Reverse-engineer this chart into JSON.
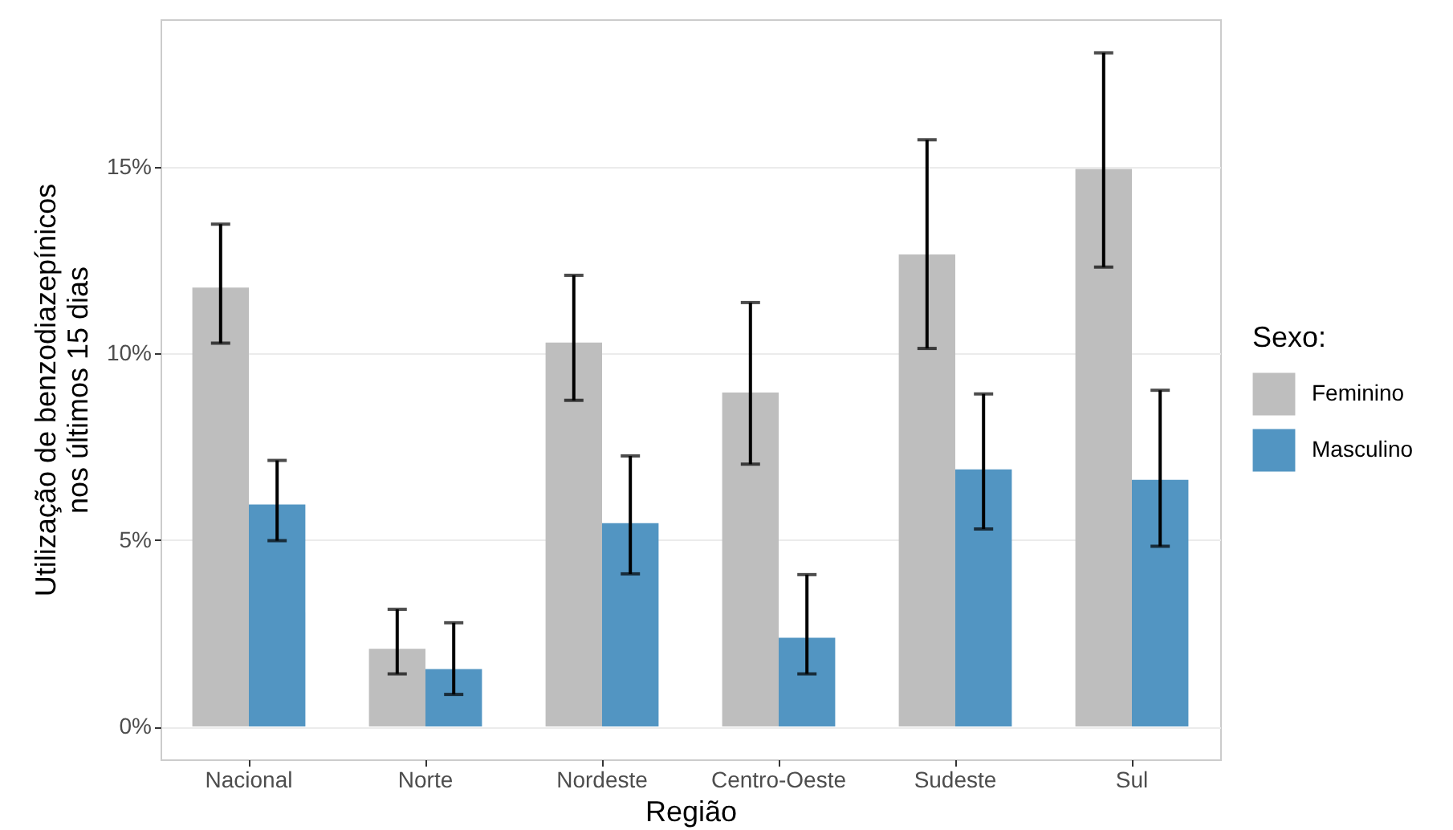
{
  "chart_data": {
    "type": "bar",
    "xlabel": "Região",
    "ylabel": "Utilização de benzodiazepínicos\nnos últimos 15 dias",
    "legend_title": "Sexo:",
    "categories": [
      "Nacional",
      "Norte",
      "Nordeste",
      "Centro-Oeste",
      "Sudeste",
      "Sul"
    ],
    "series": [
      {
        "name": "Feminino",
        "color": "#bebebe",
        "values": [
          11.76,
          2.08,
          10.29,
          8.95,
          12.65,
          14.94
        ],
        "errors": [
          [
            10.27,
            13.46
          ],
          [
            1.41,
            3.14
          ],
          [
            8.74,
            12.09
          ],
          [
            7.03,
            11.36
          ],
          [
            10.13,
            15.72
          ],
          [
            12.31,
            18.05
          ]
        ]
      },
      {
        "name": "Masculino",
        "color": "#5295c2",
        "values": [
          5.95,
          1.54,
          5.45,
          2.38,
          6.89,
          6.61
        ],
        "errors": [
          [
            4.98,
            7.13
          ],
          [
            0.86,
            2.78
          ],
          [
            4.09,
            7.25
          ],
          [
            1.41,
            4.07
          ],
          [
            5.29,
            8.91
          ],
          [
            4.83,
            9.01
          ]
        ]
      }
    ],
    "ylim": [
      -0.88,
      18.95
    ],
    "yticks": [
      {
        "value": 0,
        "label": "0%"
      },
      {
        "value": 5,
        "label": "5%"
      },
      {
        "value": 10,
        "label": "10%"
      },
      {
        "value": 15,
        "label": "15%"
      }
    ],
    "grid": "y",
    "legend": "right"
  }
}
